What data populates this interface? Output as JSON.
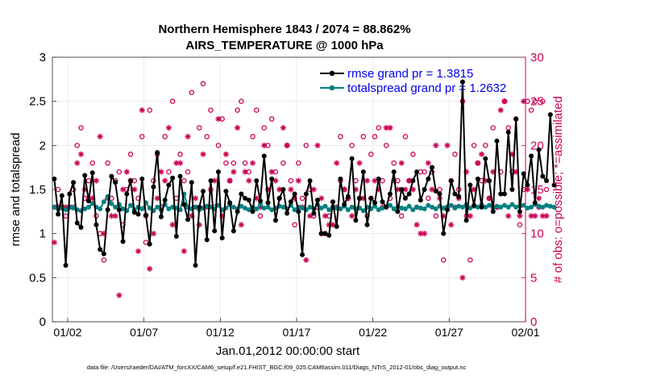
{
  "chart_data": {
    "type": "line",
    "title_line1": "Northern Hemisphere 1843 / 2074 = 88.862%",
    "title_line2": "AIRS_TEMPERATURE @ 1000 hPa",
    "xlabel": "Jan.01,2012 00:00:00 start",
    "ylabel_left": "rmse and totalspread",
    "ylabel_right": "# of obs: o=possible; *=assimilated",
    "footnote": "data file: /Users/raeder/DAI/ATM_forcXX/CAM6_setup/f.e21.FHIST_BGC.f09_025.CAM6assim.011/Diags_NTrS_2012-01/obs_diag_output.nc",
    "ylim_left": [
      0,
      3
    ],
    "ylim_right": [
      0,
      30
    ],
    "xlim": [
      0,
      31
    ],
    "yticks_left": [
      "0",
      "0.5",
      "1",
      "1.5",
      "2",
      "2.5",
      "3"
    ],
    "yticks_right": [
      "0",
      "5",
      "10",
      "15",
      "20",
      "25",
      "30"
    ],
    "xticks": [
      {
        "day": 1,
        "label": "01/02"
      },
      {
        "day": 6,
        "label": "01/07"
      },
      {
        "day": 11,
        "label": "01/12"
      },
      {
        "day": 16,
        "label": "01/17"
      },
      {
        "day": 21,
        "label": "01/22"
      },
      {
        "day": 26,
        "label": "01/27"
      },
      {
        "day": 31,
        "label": "02/01"
      }
    ],
    "legend": [
      {
        "name": "rmse grand pr = 1.3815",
        "color": "#000000"
      },
      {
        "name": "totalspread grand pr = 1.2632",
        "color": "#008080"
      }
    ],
    "colors": {
      "rmse": "#000000",
      "spread": "#008080",
      "obs": "#cc0055"
    },
    "series": [
      {
        "name": "rmse",
        "x_start": 0.125,
        "x_step": 0.25,
        "values": [
          1.62,
          1.22,
          1.43,
          0.64,
          1.45,
          1.58,
          1.12,
          1.07,
          1.66,
          1.37,
          1.69,
          1.1,
          0.82,
          0.77,
          1.27,
          1.65,
          1.58,
          1.27,
          0.91,
          1.45,
          1.6,
          1.24,
          1.22,
          1.62,
          1.21,
          0.88,
          1.53,
          1.92,
          1.19,
          1.38,
          1.55,
          1.63,
          0.97,
          1.65,
          1.33,
          1.16,
          1.58,
          0.64,
          1.3,
          1.48,
          0.93,
          1.6,
          1.03,
          1.7,
          0.95,
          1.48,
          1.35,
          1.03,
          1.25,
          1.45,
          1.4,
          1.38,
          1.25,
          1.6,
          1.37,
          1.88,
          1.35,
          1.62,
          1.15,
          1.4,
          1.5,
          1.23,
          1.36,
          1.45,
          1.25,
          0.76,
          1.45,
          1.6,
          1.23,
          1.38,
          1.0,
          1.0,
          0.98,
          1.36,
          1.08,
          1.62,
          1.33,
          1.42,
          1.85,
          1.15,
          1.4,
          1.7,
          1.1,
          1.4,
          1.35,
          1.62,
          1.36,
          1.3,
          1.45,
          1.7,
          1.25,
          1.5,
          1.4,
          1.45,
          1.6,
          1.7,
          1.38,
          1.5,
          1.62,
          1.75,
          1.48,
          1.45,
          1.0,
          1.27,
          1.6,
          1.45,
          1.42,
          2.72,
          1.15,
          1.55,
          1.32,
          1.62,
          1.3,
          1.85,
          1.6,
          1.25,
          2.05,
          1.45,
          1.45,
          2.15,
          1.5,
          2.3,
          1.25,
          1.68,
          1.55,
          1.88,
          1.35,
          1.95,
          1.65,
          1.6,
          2.35,
          1.55
        ]
      },
      {
        "name": "totalspread",
        "x_start": 0.125,
        "x_step": 0.25,
        "values": [
          1.3,
          1.28,
          1.29,
          1.27,
          1.3,
          1.29,
          1.27,
          1.26,
          1.28,
          1.3,
          1.34,
          1.3,
          1.28,
          1.36,
          1.42,
          1.34,
          1.3,
          1.33,
          1.28,
          1.26,
          1.32,
          1.27,
          1.3,
          1.28,
          1.35,
          1.29,
          1.26,
          1.3,
          1.27,
          1.33,
          1.28,
          1.3,
          1.29,
          1.27,
          1.45,
          1.3,
          1.28,
          1.3,
          1.27,
          1.29,
          1.31,
          1.3,
          1.28,
          1.32,
          1.27,
          1.29,
          1.33,
          1.3,
          1.28,
          1.31,
          1.29,
          1.27,
          1.3,
          1.28,
          1.33,
          1.29,
          1.3,
          1.27,
          1.29,
          1.31,
          1.3,
          1.28,
          1.32,
          1.27,
          1.3,
          1.29,
          1.27,
          1.3,
          1.28,
          1.33,
          1.29,
          1.31,
          1.27,
          1.3,
          1.29,
          1.28,
          1.31,
          1.27,
          1.3,
          1.28,
          1.29,
          1.26,
          1.3,
          1.28,
          1.31,
          1.27,
          1.29,
          1.3,
          1.32,
          1.28,
          1.3,
          1.29,
          1.28,
          1.31,
          1.27,
          1.3,
          1.29,
          1.28,
          1.32,
          1.3,
          1.28,
          1.31,
          1.29,
          1.3,
          1.32,
          1.29,
          1.31,
          1.3,
          1.33,
          1.29,
          1.31,
          1.3,
          1.33,
          1.3,
          1.32,
          1.29,
          1.31,
          1.3,
          1.32,
          1.3,
          1.33,
          1.3,
          1.31,
          1.32,
          1.29,
          1.3,
          1.33,
          1.31,
          1.3,
          1.32,
          1.31,
          1.3
        ]
      }
    ],
    "obs_possible": {
      "x_start": 0.125,
      "x_step": 0.25,
      "values": [
        13,
        15,
        13,
        12,
        13,
        15,
        20,
        22,
        14,
        16,
        18,
        12,
        10,
        7,
        18,
        14,
        16,
        17,
        11,
        15,
        19,
        16,
        14,
        21,
        9,
        24,
        16,
        19,
        13,
        21,
        17,
        25,
        14,
        19,
        16,
        17,
        26,
        13,
        22,
        27,
        21,
        24,
        13,
        20,
        23,
        18,
        16,
        18,
        24,
        25,
        18,
        17,
        21,
        24,
        12,
        22,
        20,
        23,
        17,
        14,
        18,
        20,
        16,
        11,
        18,
        14,
        20,
        15,
        12,
        13,
        10,
        10,
        12,
        13,
        13,
        21,
        15,
        14,
        20,
        16,
        14,
        21,
        12,
        19,
        21,
        22,
        16,
        20,
        14,
        18,
        16,
        12,
        21,
        16,
        19,
        13,
        17,
        17,
        14,
        17,
        12,
        15,
        7,
        13,
        16,
        19,
        15,
        25,
        12,
        7,
        20,
        18,
        16,
        20,
        14,
        22,
        13,
        17,
        25,
        22,
        17,
        23,
        11,
        15,
        25,
        24,
        25,
        13,
        25,
        15
      ]
    },
    "obs_assimilated": {
      "x_start": 0.125,
      "x_step": 0.25,
      "values": [
        9,
        13,
        13,
        13,
        13,
        13,
        18,
        19,
        15,
        14,
        14,
        16,
        21,
        10,
        14,
        12,
        12,
        3,
        15,
        17,
        16,
        15,
        8,
        24,
        12,
        6,
        10,
        14,
        17,
        16,
        22,
        11,
        18,
        18,
        8,
        21,
        12,
        14,
        11,
        19,
        13,
        15,
        16,
        23,
        12,
        19,
        16,
        17,
        22,
        11,
        17,
        16,
        18,
        14,
        13,
        20,
        15,
        17,
        16,
        15,
        22,
        20,
        15,
        14,
        16,
        13,
        7,
        12,
        15,
        20,
        14,
        12,
        11,
        11,
        18,
        16,
        15,
        14,
        12,
        15,
        18,
        14,
        16,
        14,
        16,
        15,
        13,
        22,
        22,
        16,
        15,
        18,
        15,
        16,
        15,
        11,
        10,
        10,
        18,
        15,
        20,
        14,
        12,
        20,
        11,
        13,
        14,
        5,
        17,
        12,
        15,
        18,
        19,
        16,
        14,
        17,
        13,
        24,
        25,
        12,
        19,
        17,
        12,
        25,
        15,
        12,
        12,
        14,
        12,
        12
      ]
    }
  }
}
